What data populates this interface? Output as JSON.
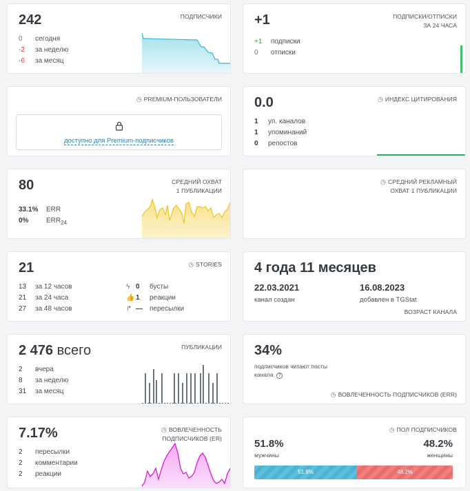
{
  "subscribers": {
    "value": "242",
    "title": "ПОДПИСЧИКИ",
    "rows": [
      {
        "n": "0",
        "label": "сегодня"
      },
      {
        "n": "-2",
        "label": "за неделю"
      },
      {
        "n": "-6",
        "label": "за месяц"
      }
    ]
  },
  "daily_change": {
    "value": "+1",
    "title_1": "ПОДПИСКИ/ОТПИСКИ",
    "title_2": "ЗА 24 ЧАСА",
    "rows": [
      {
        "n": "+1",
        "label": "подписки"
      },
      {
        "n": "0",
        "label": "отписки"
      }
    ]
  },
  "premium": {
    "title": "PREMIUM-ПОЛЬЗОВАТЕЛИ",
    "link": "доступно для Premium-подписчиков"
  },
  "citation": {
    "value": "0.0",
    "title": "ИНДЕКС ЦИТИРОВАНИЯ",
    "rows": [
      {
        "n": "1",
        "label": "уп. каналов"
      },
      {
        "n": "1",
        "label": "упоминаний"
      },
      {
        "n": "0",
        "label": "репостов"
      }
    ]
  },
  "reach": {
    "value": "80",
    "title_1": "СРЕДНИЙ ОХВАТ",
    "title_2": "1 ПУБЛИКАЦИИ",
    "rows": [
      {
        "n": "33.1%",
        "label": "ERR"
      },
      {
        "n": "0%",
        "label": "ERR",
        "sub": "24"
      }
    ]
  },
  "ad_reach": {
    "title_1": "СРЕДНИЙ РЕКЛАМНЫЙ",
    "title_2": "ОХВАТ 1 ПУБЛИКАЦИИ"
  },
  "stories": {
    "value": "21",
    "title": "STORIES",
    "left_rows": [
      {
        "n": "13",
        "label": "за 12 часов"
      },
      {
        "n": "21",
        "label": "за 24 часа"
      },
      {
        "n": "27",
        "label": "за 48 часов"
      }
    ],
    "right_rows": [
      {
        "icon": "boost-icon",
        "n": "0",
        "label": "бусты"
      },
      {
        "icon": "thumbs-up-icon",
        "n": "1",
        "label": "реакции"
      },
      {
        "icon": "share-icon",
        "n": "—",
        "label": "пересылки"
      }
    ]
  },
  "age": {
    "value": "4 года 11 месяцев",
    "created_date": "22.03.2021",
    "created_label": "канал создан",
    "added_date": "16.08.2023",
    "added_label": "добавлен в TGStat",
    "title": "ВОЗРАСТ КАНАЛА"
  },
  "posts": {
    "value": "2 476",
    "suffix": "всего",
    "title": "ПУБЛИКАЦИИ",
    "rows": [
      {
        "n": "2",
        "label": "вчера"
      },
      {
        "n": "8",
        "label": "за неделю"
      },
      {
        "n": "31",
        "label": "за месяц"
      }
    ]
  },
  "engagement_read": {
    "value": "34%",
    "text": "подписчиков читают посты канала",
    "help": "?",
    "title": "ВОВЛЕЧЕННОСТЬ ПОДПИСЧИКОВ (ERR)"
  },
  "engagement_er": {
    "value": "7.17%",
    "title_1": "ВОВЛЕЧЕННОСТЬ",
    "title_2": "ПОДПИСЧИКОВ (ER)",
    "rows": [
      {
        "n": "2",
        "label": "пересылки"
      },
      {
        "n": "2",
        "label": "комментарии"
      },
      {
        "n": "2",
        "label": "реакции"
      }
    ]
  },
  "gender": {
    "title": "ПОЛ ПОДПИСЧИКОВ",
    "male_pct": "51.8%",
    "male_label": "мужчины",
    "female_pct": "48.2%",
    "female_label": "женщины",
    "male_share": 0.518,
    "female_share": 0.482
  },
  "colors": {
    "subscribers_line": "#3bb4cf",
    "reach_line": "#f0c419",
    "er_line": "#d61bd6",
    "posts_bars": "#6c757d",
    "positive": "#28a745",
    "negative": "#dc3545",
    "male": "#5bc0de",
    "female": "#f47e7e"
  }
}
